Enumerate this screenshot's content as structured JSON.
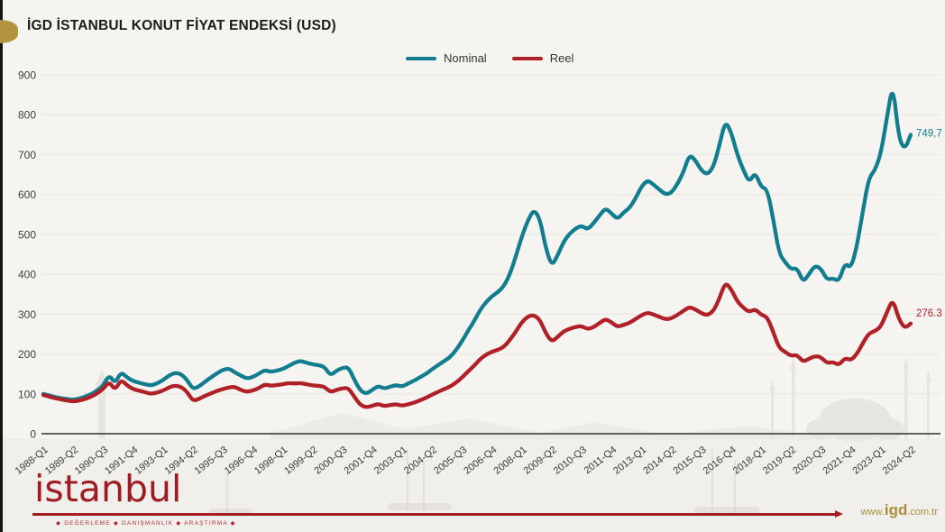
{
  "page": {
    "title": "İGD İSTANBUL KONUT FİYAT ENDEKSİ (USD)"
  },
  "legend": {
    "items": [
      {
        "label": "Nominal",
        "color": "#137d90"
      },
      {
        "label": "Reel",
        "color": "#b02026"
      }
    ]
  },
  "chart_data": {
    "type": "line",
    "title": "İGD İSTANBUL KONUT FİYAT ENDEKSİ (USD)",
    "xlabel": "",
    "ylabel": "",
    "ylim": [
      0,
      900
    ],
    "yticks": [
      0,
      100,
      200,
      300,
      400,
      500,
      600,
      700,
      800,
      900
    ],
    "grid": "horizontal",
    "grid_color": "#e9e6e2",
    "axis_color": "#2f2f2f",
    "legend_position": "top-center",
    "x_start": "1988-Q1",
    "x_end": "2024-Q2",
    "x_frequency": "quarterly",
    "x_tick_every_n_quarters": 5,
    "x_tick_labels": [
      "1988-Q1",
      "1989-Q2",
      "1990-Q3",
      "1991-Q4",
      "1993-Q1",
      "1994-Q2",
      "1995-Q3",
      "1996-Q4",
      "1998-Q1",
      "1999-Q2",
      "2000-Q3",
      "2001-Q4",
      "2003-Q1",
      "2004-Q2",
      "2005-Q3",
      "2006-Q4",
      "2008-Q1",
      "2009-Q2",
      "2010-Q3",
      "2011-Q4",
      "2013-Q1",
      "2014-Q2",
      "2015-Q3",
      "2016-Q4",
      "2018-Q1",
      "2019-Q2",
      "2020-Q3",
      "2021-Q4",
      "2023-Q1",
      "2024-Q2"
    ],
    "series": [
      {
        "name": "Nominal",
        "color": "#137d90",
        "end_label": "749,7",
        "end_value": 749.7,
        "values": [
          100,
          96,
          92,
          89,
          87,
          85,
          88,
          93,
          99,
          108,
          120,
          148,
          126,
          155,
          141,
          132,
          128,
          124,
          121,
          126,
          134,
          146,
          153,
          150,
          136,
          112,
          118,
          130,
          141,
          151,
          160,
          164,
          154,
          146,
          138,
          142,
          150,
          160,
          155,
          158,
          162,
          170,
          178,
          183,
          178,
          174,
          172,
          168,
          146,
          158,
          165,
          167,
          135,
          108,
          100,
          110,
          120,
          113,
          118,
          122,
          118,
          126,
          133,
          142,
          150,
          162,
          172,
          182,
          192,
          210,
          232,
          258,
          282,
          310,
          330,
          345,
          355,
          370,
          400,
          445,
          495,
          535,
          562,
          540,
          465,
          420,
          448,
          482,
          502,
          515,
          522,
          512,
          528,
          548,
          566,
          552,
          538,
          555,
          566,
          590,
          620,
          636,
          625,
          612,
          600,
          604,
          626,
          656,
          700,
          686,
          660,
          650,
          668,
          722,
          785,
          756,
          700,
          662,
          630,
          656,
          618,
          614,
          540,
          452,
          430,
          412,
          416,
          380,
          400,
          422,
          414,
          386,
          390,
          382,
          428,
          415,
          470,
          558,
          642,
          660,
          702,
          790,
          880,
          742,
          712,
          749.7
        ]
      },
      {
        "name": "Reel",
        "color": "#b02026",
        "end_label": "276.3",
        "end_value": 276.3,
        "values": [
          97,
          93,
          89,
          86,
          83,
          81,
          83,
          87,
          93,
          101,
          112,
          131,
          109,
          136,
          121,
          112,
          108,
          104,
          100,
          103,
          108,
          116,
          121,
          118,
          106,
          82,
          87,
          95,
          101,
          107,
          112,
          116,
          118,
          110,
          105,
          108,
          114,
          124,
          120,
          122,
          124,
          127,
          126,
          127,
          124,
          121,
          120,
          118,
          104,
          110,
          114,
          115,
          92,
          72,
          66,
          70,
          75,
          69,
          72,
          74,
          70,
          74,
          78,
          84,
          90,
          98,
          105,
          112,
          118,
          128,
          141,
          156,
          170,
          187,
          198,
          206,
          210,
          218,
          235,
          256,
          280,
          294,
          298,
          286,
          252,
          230,
          243,
          257,
          263,
          268,
          270,
          262,
          267,
          278,
          288,
          279,
          268,
          273,
          278,
          288,
          297,
          304,
          299,
          293,
          287,
          289,
          298,
          308,
          318,
          312,
          302,
          297,
          307,
          338,
          380,
          362,
          332,
          316,
          305,
          313,
          298,
          293,
          256,
          215,
          205,
          195,
          198,
          180,
          188,
          195,
          192,
          177,
          180,
          172,
          190,
          184,
          200,
          227,
          252,
          257,
          268,
          304,
          338,
          288,
          264,
          276.3
        ]
      }
    ]
  },
  "footer": {
    "logo_text": "istanbul",
    "tagline": "◆ DEĞERLEME ◆ DANIŞMANLIK ◆ ARAŞTIRMA ◆",
    "website": {
      "prefix": "www.",
      "name": "igd",
      "suffix": ".com.tr"
    }
  },
  "colors": {
    "background": "#f5f4f1",
    "title_text": "#1c1c1c",
    "logo_red": "#9e1c21",
    "gold": "#b3943e",
    "left_edge": "#141414"
  }
}
